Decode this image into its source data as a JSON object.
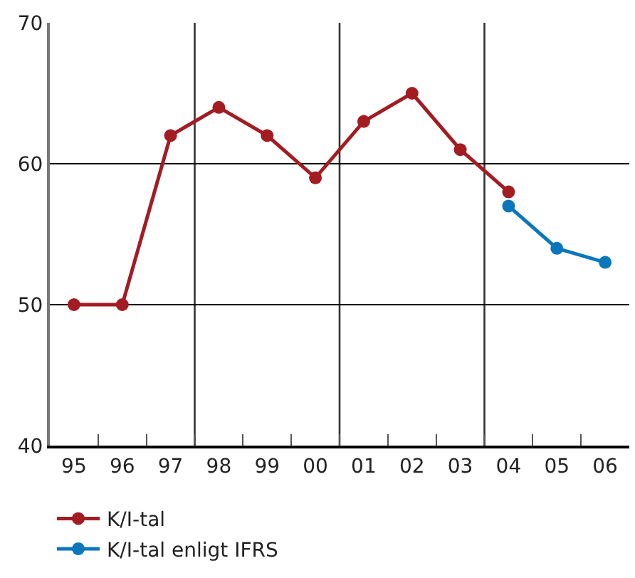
{
  "chart_data": {
    "type": "line",
    "categories": [
      "95",
      "96",
      "97",
      "98",
      "99",
      "00",
      "01",
      "02",
      "03",
      "04",
      "05",
      "06"
    ],
    "series": [
      {
        "name": "K/I-tal",
        "color": "#a31c22",
        "values": [
          50,
          50,
          62,
          64,
          62,
          59,
          63,
          65,
          61,
          58,
          null,
          null
        ]
      },
      {
        "name": "K/I-tal enligt IFRS",
        "color": "#0a77bd",
        "values": [
          null,
          null,
          null,
          null,
          null,
          null,
          null,
          null,
          null,
          57,
          54,
          53
        ]
      }
    ],
    "ylim": [
      40,
      70
    ],
    "yticks": [
      40,
      50,
      60,
      70
    ],
    "grid": true,
    "legend": "bottom left",
    "marker": "circle",
    "line_style": "solid"
  }
}
